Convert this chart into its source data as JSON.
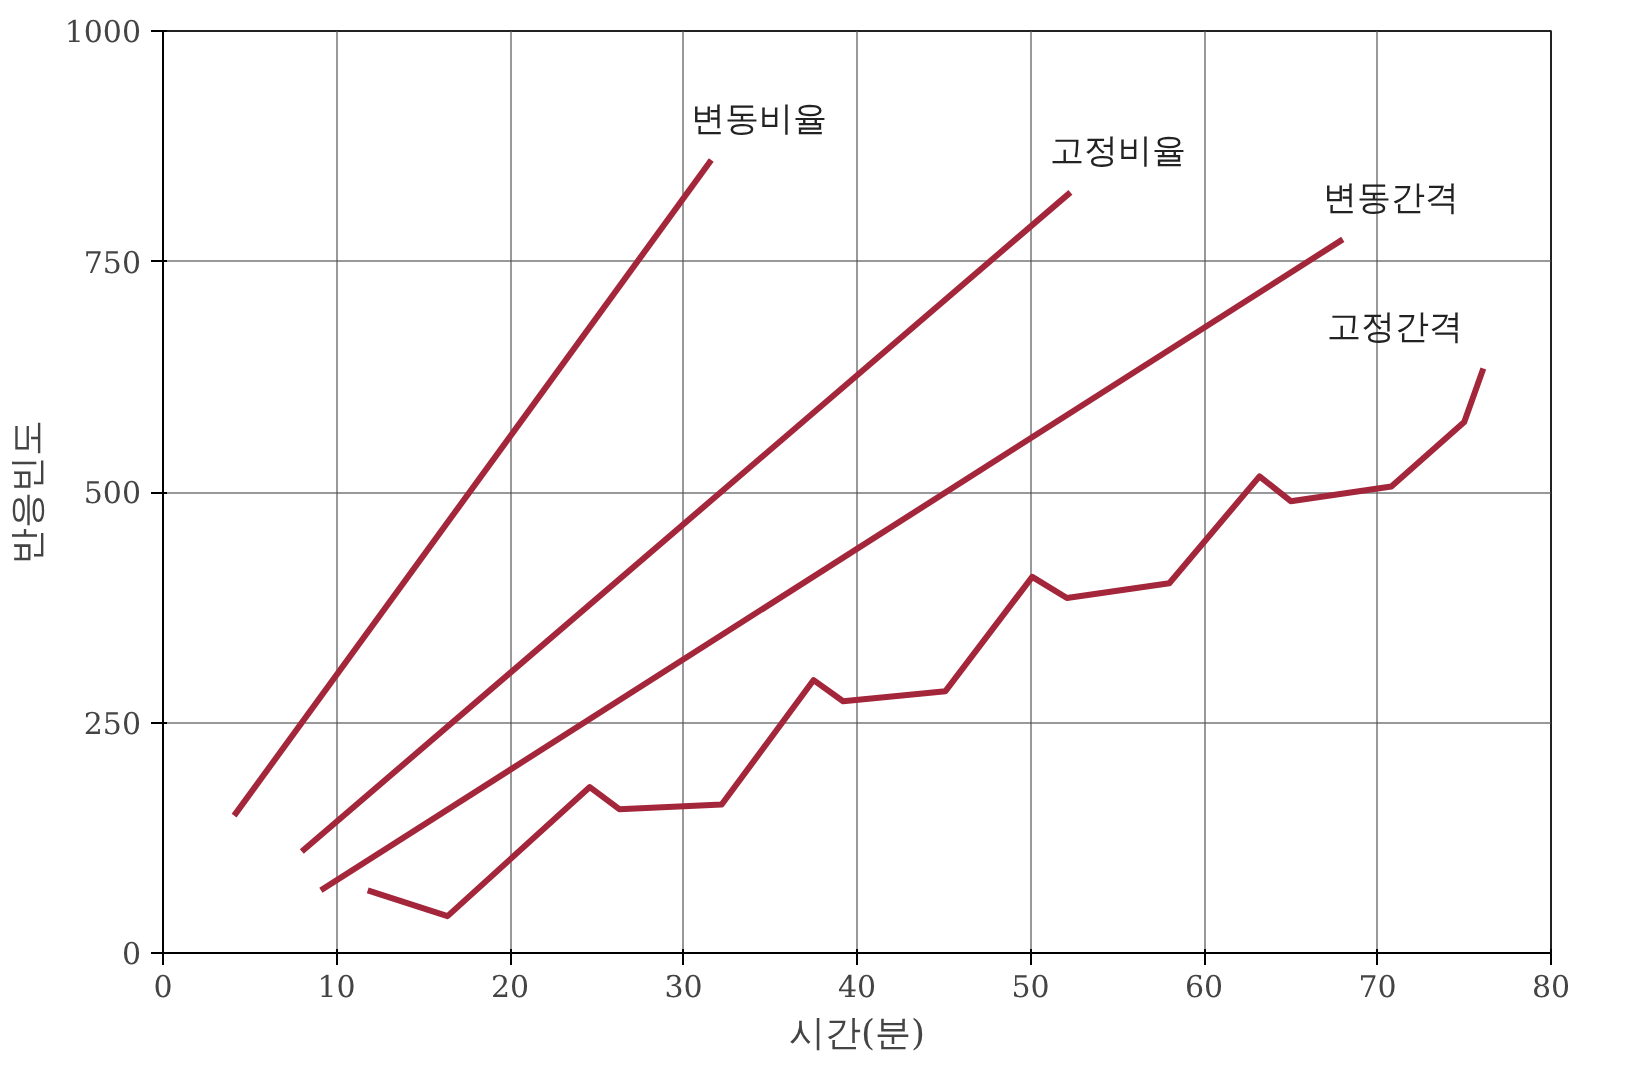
{
  "chart_data": {
    "type": "line",
    "xlabel": "시간(분)",
    "ylabel": "반응빈도",
    "xlim": [
      0,
      80
    ],
    "ylim": [
      0,
      1000
    ],
    "xticks": [
      0,
      10,
      20,
      30,
      40,
      50,
      60,
      70,
      80
    ],
    "yticks": [
      0,
      250,
      500,
      750,
      1000
    ],
    "grid": true,
    "marker": "none",
    "line_style": "solid",
    "series": [
      {
        "name": "변동비율",
        "color": "#a3263a",
        "x": [
          4.1,
          31.6
        ],
        "values": [
          149,
          860
        ]
      },
      {
        "name": "고정비율",
        "color": "#a3263a",
        "x": [
          8.0,
          52.3
        ],
        "values": [
          110,
          825
        ]
      },
      {
        "name": "변동간격",
        "color": "#a3263a",
        "x": [
          9.1,
          68.0
        ],
        "values": [
          68,
          774
        ]
      },
      {
        "name": "고정간격",
        "color": "#a3263a",
        "x": [
          11.8,
          16.4,
          24.6,
          26.3,
          32.2,
          37.5,
          39.2,
          45.1,
          50.1,
          52.1,
          58.0,
          63.2,
          65.0,
          70.8,
          75.0,
          76.1
        ],
        "values": [
          68,
          40,
          180,
          156,
          161,
          296,
          273,
          284,
          408,
          385,
          401,
          517,
          490,
          506,
          576,
          634
        ]
      }
    ]
  }
}
